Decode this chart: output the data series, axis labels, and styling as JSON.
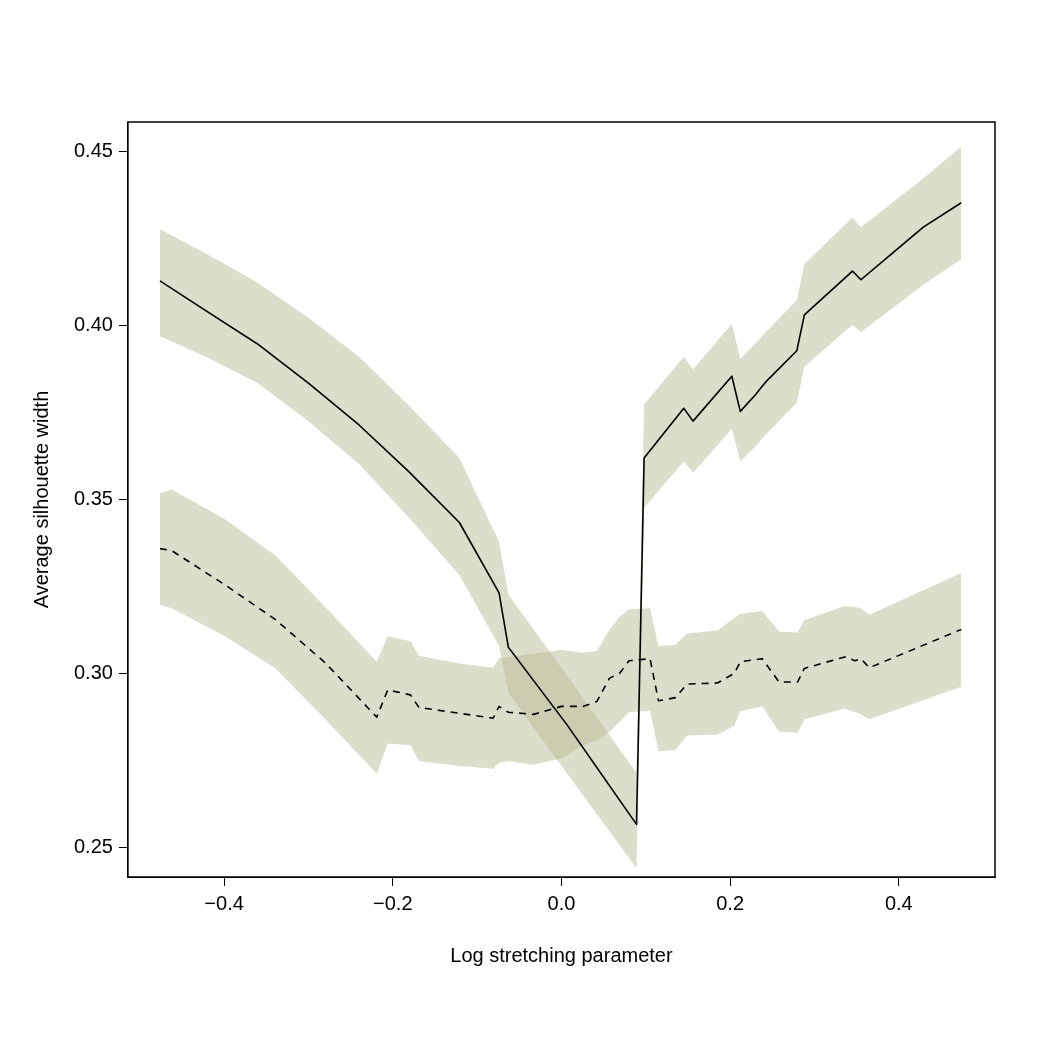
{
  "chart_data": {
    "type": "line",
    "xlabel": "Log stretching parameter",
    "ylabel": "Average silhouette width",
    "xlim": [
      -0.514,
      0.514
    ],
    "ylim": [
      0.2416,
      0.4584
    ],
    "xticks": [
      {
        "value": -0.4,
        "label": "−0.4"
      },
      {
        "value": -0.2,
        "label": "−0.2"
      },
      {
        "value": 0,
        "label": "0.0"
      },
      {
        "value": 0.2,
        "label": "0.2"
      },
      {
        "value": 0.4,
        "label": "0.4"
      }
    ],
    "yticks": [
      0.25,
      {
        "value": 0.3,
        "label": "0.30"
      },
      0.35,
      {
        "value": 0.4,
        "label": "0.40"
      },
      0.45
    ],
    "grid": false,
    "legend": false,
    "series": [
      {
        "color": "#000000",
        "line_style": "solid",
        "x": [
          -0.476,
          -0.419,
          -0.36,
          -0.3,
          -0.24,
          -0.181,
          -0.121,
          -0.074,
          -0.063,
          0.006,
          0.089,
          0.098,
          0.145,
          0.156,
          0.202,
          0.212,
          0.23,
          0.242,
          0.279,
          0.288,
          0.345,
          0.355,
          0.429,
          0.474
        ],
        "values": [
          0.4128,
          0.4038,
          0.3946,
          0.3834,
          0.3714,
          0.358,
          0.3434,
          0.3232,
          0.3076,
          0.2855,
          0.2567,
          0.3619,
          0.3762,
          0.3725,
          0.3854,
          0.3753,
          0.3801,
          0.3837,
          0.3927,
          0.403,
          0.4156,
          0.4131,
          0.4282,
          0.4352
        ],
        "upper": [
          0.4276,
          0.4203,
          0.4122,
          0.4022,
          0.391,
          0.377,
          0.3619,
          0.3378,
          0.3227,
          0.2995,
          0.2715,
          0.3773,
          0.391,
          0.3873,
          0.4005,
          0.3904,
          0.3949,
          0.398,
          0.4072,
          0.4176,
          0.431,
          0.4282,
          0.4422,
          0.4514
        ],
        "lower": [
          0.3969,
          0.3907,
          0.3834,
          0.3725,
          0.3602,
          0.3448,
          0.3283,
          0.3079,
          0.2945,
          0.2715,
          0.2441,
          0.3476,
          0.361,
          0.3577,
          0.3703,
          0.361,
          0.3652,
          0.3686,
          0.3778,
          0.3882,
          0.4002,
          0.398,
          0.4117,
          0.419
        ]
      },
      {
        "color": "#000000",
        "line_style": "dashed",
        "x": [
          -0.476,
          -0.462,
          -0.399,
          -0.339,
          -0.28,
          -0.219,
          -0.206,
          -0.179,
          -0.169,
          -0.121,
          -0.081,
          -0.074,
          -0.063,
          -0.033,
          0,
          0.026,
          0.042,
          0.057,
          0.069,
          0.08,
          0.105,
          0.115,
          0.135,
          0.149,
          0.185,
          0.205,
          0.212,
          0.238,
          0.258,
          0.28,
          0.288,
          0.336,
          0.348,
          0.355,
          0.365,
          0.474
        ],
        "values": [
          0.3359,
          0.3353,
          0.3255,
          0.3155,
          0.3031,
          0.2875,
          0.2953,
          0.2939,
          0.2903,
          0.2886,
          0.2872,
          0.2906,
          0.2889,
          0.2883,
          0.2906,
          0.2906,
          0.292,
          0.2987,
          0.3001,
          0.3037,
          0.3043,
          0.2922,
          0.2931,
          0.297,
          0.2973,
          0.3001,
          0.3034,
          0.3043,
          0.2976,
          0.2976,
          0.3015,
          0.3048,
          0.3037,
          0.3043,
          0.3017,
          0.3127
        ],
        "upper": [
          0.3518,
          0.3529,
          0.3443,
          0.3339,
          0.3191,
          0.3034,
          0.3107,
          0.3093,
          0.3051,
          0.3029,
          0.3017,
          0.3045,
          0.3048,
          0.3057,
          0.3068,
          0.306,
          0.3065,
          0.3127,
          0.3163,
          0.3185,
          0.3188,
          0.3079,
          0.3082,
          0.3115,
          0.3124,
          0.316,
          0.3171,
          0.318,
          0.3121,
          0.3118,
          0.3154,
          0.3194,
          0.3191,
          0.3188,
          0.3169,
          0.3289
        ],
        "lower": [
          0.3197,
          0.3188,
          0.3107,
          0.3015,
          0.2869,
          0.2713,
          0.2799,
          0.2794,
          0.2749,
          0.2735,
          0.2727,
          0.2743,
          0.2749,
          0.2738,
          0.2757,
          0.2794,
          0.2808,
          0.2833,
          0.2861,
          0.2889,
          0.2894,
          0.2777,
          0.278,
          0.2822,
          0.2825,
          0.285,
          0.2892,
          0.2906,
          0.2833,
          0.283,
          0.2869,
          0.29,
          0.2889,
          0.2883,
          0.2869,
          0.2962
        ]
      }
    ]
  }
}
